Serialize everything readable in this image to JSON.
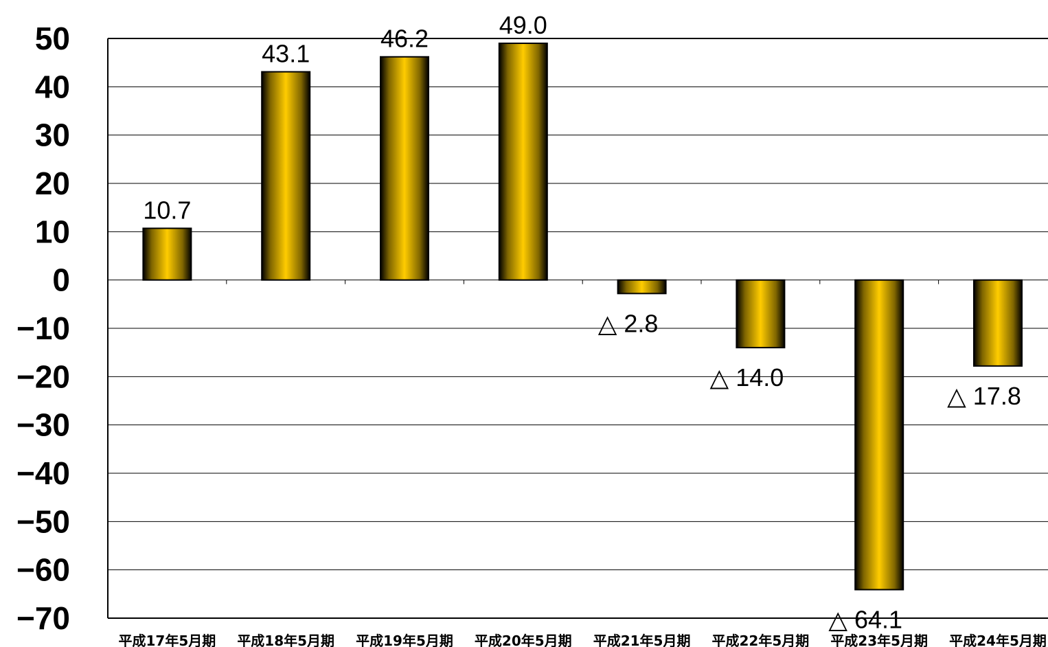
{
  "chart_data": {
    "type": "bar",
    "categories": [
      "平成17年5月期",
      "平成18年5月期",
      "平成19年5月期",
      "平成20年5月期",
      "平成21年5月期",
      "平成22年5月期",
      "平成23年5月期",
      "平成24年5月期"
    ],
    "values": [
      10.7,
      43.1,
      46.2,
      49.0,
      -2.8,
      -14.0,
      -64.1,
      -17.8
    ],
    "data_labels": [
      "10.7",
      "43.1",
      "46.2",
      "49.0",
      "△ 2.8",
      "△ 14.0",
      "△ 64.1",
      "△ 17.8"
    ],
    "ylim": [
      -70,
      50
    ],
    "yticks": [
      50,
      40,
      30,
      20,
      10,
      0,
      -10,
      -20,
      -30,
      -40,
      -50,
      -60,
      -70
    ],
    "ytick_labels": [
      "50",
      "40",
      "30",
      "20",
      "10",
      "0",
      "−10",
      "−20",
      "−30",
      "−40",
      "−50",
      "−60",
      "−70"
    ],
    "grid": true,
    "bar_color": "#FFCC00",
    "bar_edge_color": "#000000"
  }
}
